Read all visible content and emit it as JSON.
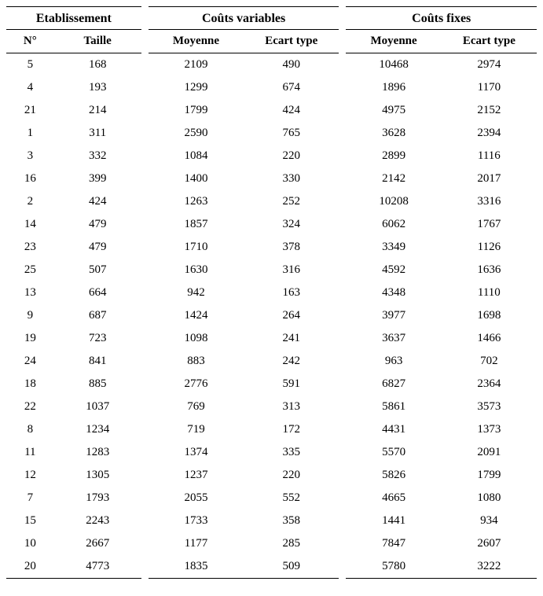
{
  "table": {
    "groupHeaders": {
      "etab": "Etablissement",
      "var": "Coûts variables",
      "fix": "Coûts fixes"
    },
    "subHeaders": {
      "num": "N°",
      "taille": "Taille",
      "moyenne": "Moyenne",
      "ecart": "Ecart type"
    },
    "rows": [
      {
        "num": "5",
        "taille": "168",
        "var_moy": "2109",
        "var_et": "490",
        "fix_moy": "10468",
        "fix_et": "2974"
      },
      {
        "num": "4",
        "taille": "193",
        "var_moy": "1299",
        "var_et": "674",
        "fix_moy": "1896",
        "fix_et": "1170"
      },
      {
        "num": "21",
        "taille": "214",
        "var_moy": "1799",
        "var_et": "424",
        "fix_moy": "4975",
        "fix_et": "2152"
      },
      {
        "num": "1",
        "taille": "311",
        "var_moy": "2590",
        "var_et": "765",
        "fix_moy": "3628",
        "fix_et": "2394"
      },
      {
        "num": "3",
        "taille": "332",
        "var_moy": "1084",
        "var_et": "220",
        "fix_moy": "2899",
        "fix_et": "1116"
      },
      {
        "num": "16",
        "taille": "399",
        "var_moy": "1400",
        "var_et": "330",
        "fix_moy": "2142",
        "fix_et": "2017"
      },
      {
        "num": "2",
        "taille": "424",
        "var_moy": "1263",
        "var_et": "252",
        "fix_moy": "10208",
        "fix_et": "3316"
      },
      {
        "num": "14",
        "taille": "479",
        "var_moy": "1857",
        "var_et": "324",
        "fix_moy": "6062",
        "fix_et": "1767"
      },
      {
        "num": "23",
        "taille": "479",
        "var_moy": "1710",
        "var_et": "378",
        "fix_moy": "3349",
        "fix_et": "1126"
      },
      {
        "num": "25",
        "taille": "507",
        "var_moy": "1630",
        "var_et": "316",
        "fix_moy": "4592",
        "fix_et": "1636"
      },
      {
        "num": "13",
        "taille": "664",
        "var_moy": "942",
        "var_et": "163",
        "fix_moy": "4348",
        "fix_et": "1110"
      },
      {
        "num": "9",
        "taille": "687",
        "var_moy": "1424",
        "var_et": "264",
        "fix_moy": "3977",
        "fix_et": "1698"
      },
      {
        "num": "19",
        "taille": "723",
        "var_moy": "1098",
        "var_et": "241",
        "fix_moy": "3637",
        "fix_et": "1466"
      },
      {
        "num": "24",
        "taille": "841",
        "var_moy": "883",
        "var_et": "242",
        "fix_moy": "963",
        "fix_et": "702"
      },
      {
        "num": "18",
        "taille": "885",
        "var_moy": "2776",
        "var_et": "591",
        "fix_moy": "6827",
        "fix_et": "2364"
      },
      {
        "num": "22",
        "taille": "1037",
        "var_moy": "769",
        "var_et": "313",
        "fix_moy": "5861",
        "fix_et": "3573"
      },
      {
        "num": "8",
        "taille": "1234",
        "var_moy": "719",
        "var_et": "172",
        "fix_moy": "4431",
        "fix_et": "1373"
      },
      {
        "num": "11",
        "taille": "1283",
        "var_moy": "1374",
        "var_et": "335",
        "fix_moy": "5570",
        "fix_et": "2091"
      },
      {
        "num": "12",
        "taille": "1305",
        "var_moy": "1237",
        "var_et": "220",
        "fix_moy": "5826",
        "fix_et": "1799"
      },
      {
        "num": "7",
        "taille": "1793",
        "var_moy": "2055",
        "var_et": "552",
        "fix_moy": "4665",
        "fix_et": "1080"
      },
      {
        "num": "15",
        "taille": "2243",
        "var_moy": "1733",
        "var_et": "358",
        "fix_moy": "1441",
        "fix_et": "934"
      },
      {
        "num": "10",
        "taille": "2667",
        "var_moy": "1177",
        "var_et": "285",
        "fix_moy": "7847",
        "fix_et": "2607"
      },
      {
        "num": "20",
        "taille": "4773",
        "var_moy": "1835",
        "var_et": "509",
        "fix_moy": "5780",
        "fix_et": "3222"
      }
    ],
    "style": {
      "background_color": "#ffffff",
      "text_color": "#000000",
      "border_color": "#000000",
      "font_family": "Times New Roman",
      "header_fontsize_pt": 12,
      "body_fontsize_pt": 11
    }
  }
}
